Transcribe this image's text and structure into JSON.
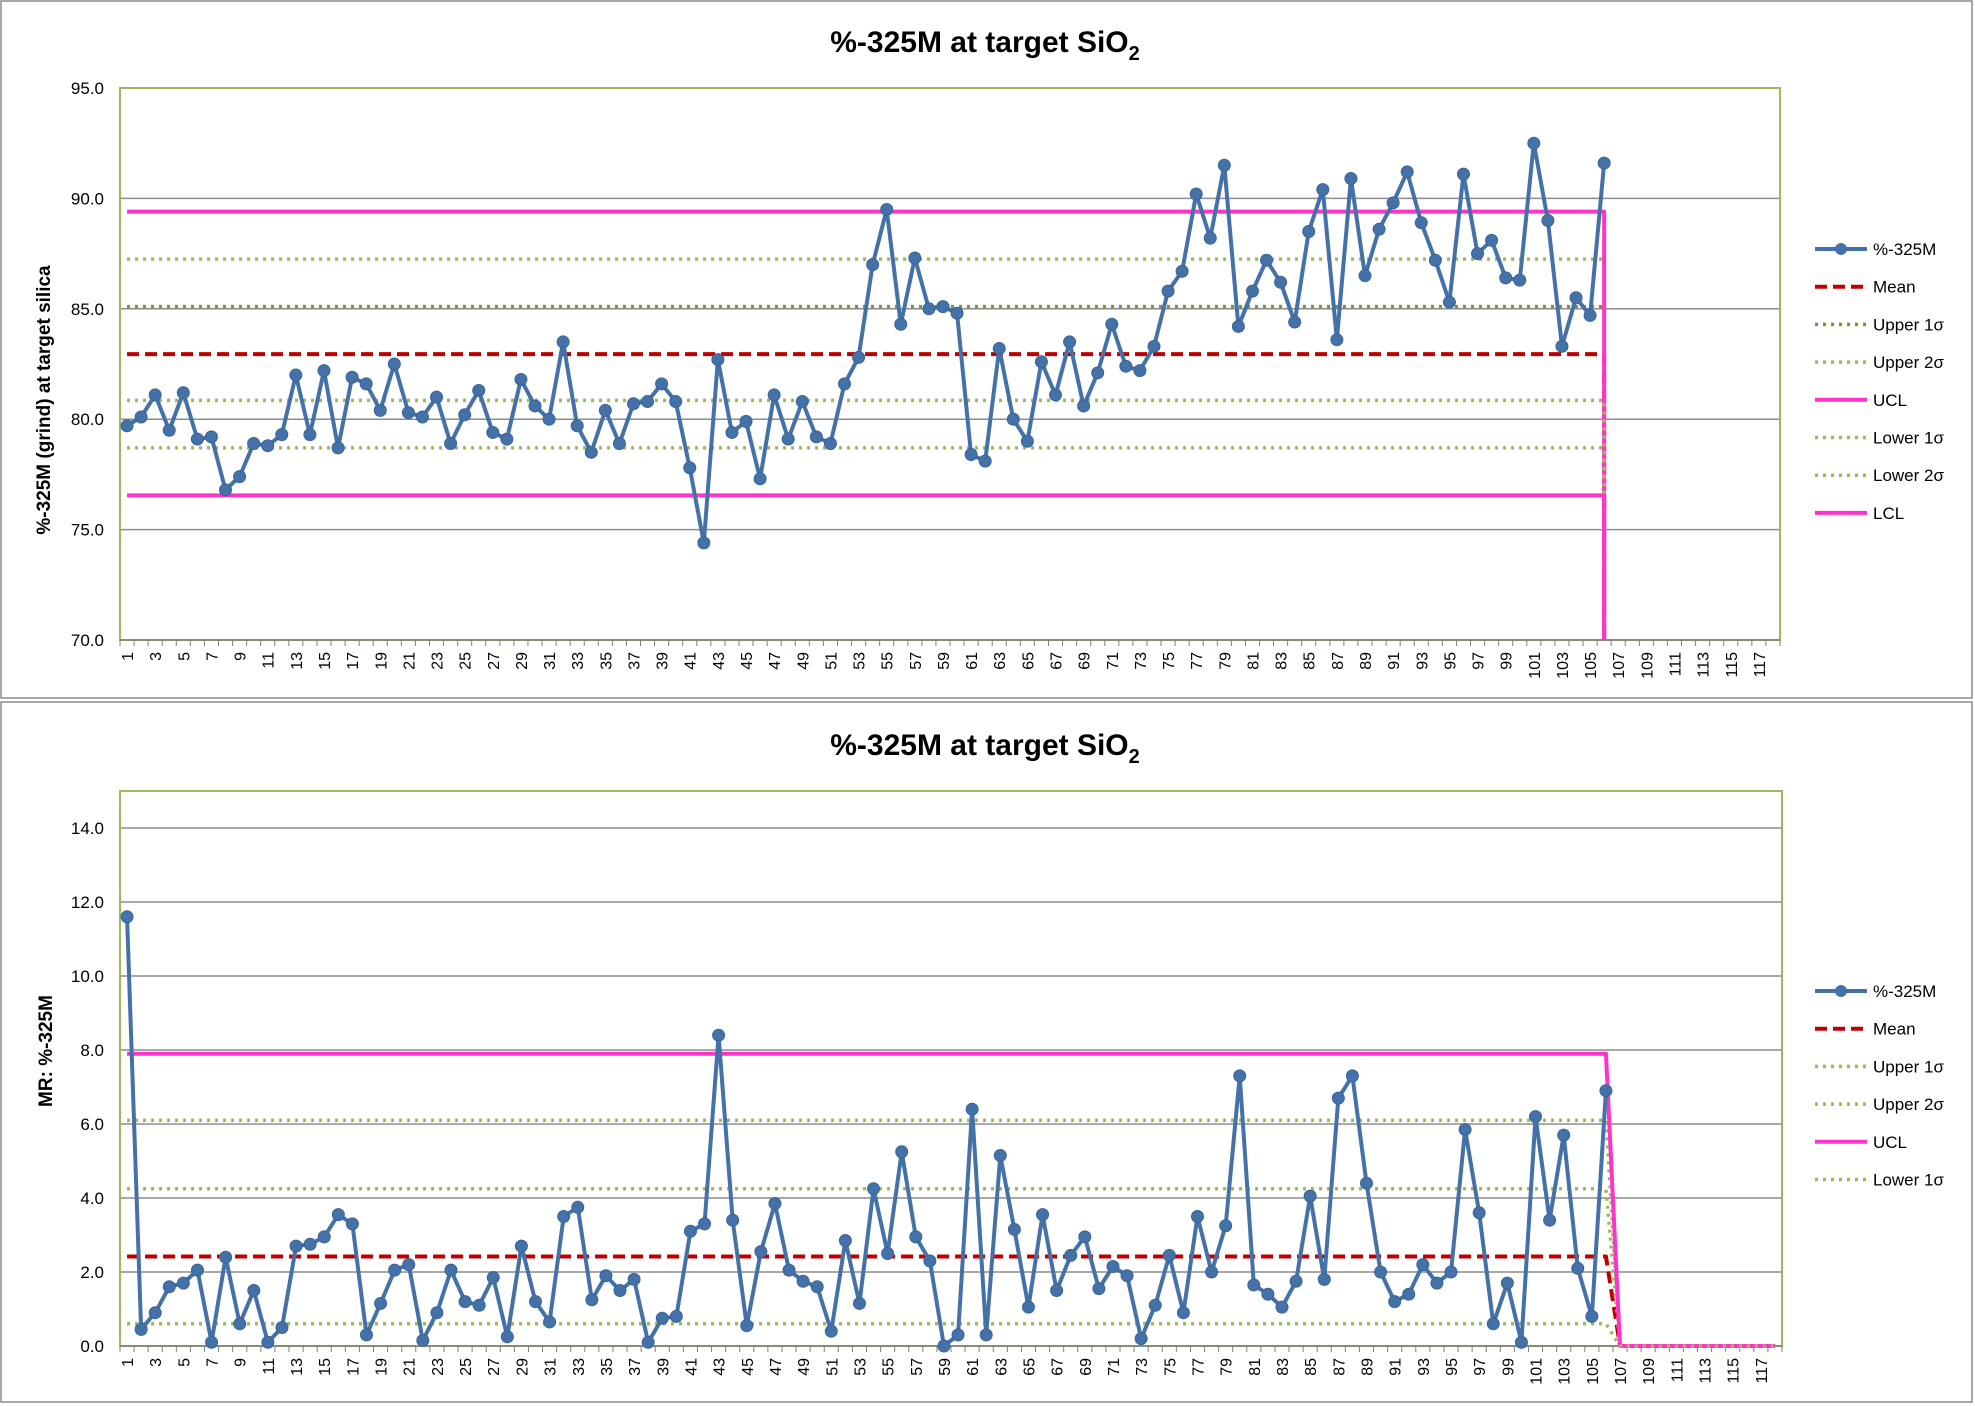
{
  "chart_data": [
    {
      "type": "line",
      "title": "%-325M at target SiO",
      "title_subscript": "2",
      "xlabel": "",
      "ylabel": "%-325M (grind) at target silica",
      "ylim": [
        70,
        95
      ],
      "yticks": [
        "70.0",
        "75.0",
        "80.0",
        "85.0",
        "90.0",
        "95.0"
      ],
      "x_count": 118,
      "x_tick_labels": [
        "1",
        "3",
        "5",
        "7",
        "9",
        "11",
        "13",
        "15",
        "17",
        "19",
        "21",
        "23",
        "25",
        "27",
        "29",
        "31",
        "33",
        "35",
        "37",
        "39",
        "41",
        "43",
        "45",
        "47",
        "49",
        "51",
        "53",
        "55",
        "57",
        "59",
        "61",
        "63",
        "65",
        "67",
        "69",
        "71",
        "73",
        "75",
        "77",
        "79",
        "81",
        "83",
        "85",
        "87",
        "89",
        "91",
        "93",
        "95",
        "97",
        "99",
        "101",
        "103",
        "105",
        "107",
        "109",
        "111",
        "113",
        "115",
        "117"
      ],
      "grid": true,
      "legend_position": "right",
      "series": [
        {
          "name": "%-325M",
          "style": "line-marker",
          "color": "#4472a8",
          "values": [
            79.7,
            80.1,
            81.1,
            79.5,
            81.2,
            79.1,
            79.2,
            76.8,
            77.4,
            78.9,
            78.8,
            79.3,
            82.0,
            79.3,
            82.2,
            78.7,
            81.9,
            81.6,
            80.4,
            82.5,
            80.3,
            80.1,
            81.0,
            78.9,
            80.2,
            81.3,
            79.4,
            79.1,
            81.8,
            80.6,
            80.0,
            83.5,
            79.7,
            78.5,
            80.4,
            78.9,
            80.7,
            80.8,
            81.6,
            80.8,
            77.8,
            74.4,
            82.7,
            79.4,
            79.9,
            77.3,
            81.1,
            79.1,
            80.8,
            79.2,
            78.9,
            81.6,
            82.8,
            87.0,
            89.5,
            84.3,
            87.3,
            85.0,
            85.1,
            84.8,
            78.4,
            78.1,
            83.2,
            80.0,
            79.0,
            82.6,
            81.1,
            83.5,
            80.6,
            82.1,
            84.3,
            82.4,
            82.2,
            83.3,
            85.8,
            86.7,
            90.2,
            88.2,
            91.5,
            84.2,
            85.8,
            87.2,
            86.2,
            84.4,
            88.5,
            90.4,
            83.6,
            90.9,
            86.5,
            88.6,
            89.8,
            91.2,
            88.9,
            87.2,
            85.3,
            91.1,
            87.5,
            88.1,
            86.4,
            86.3,
            92.5,
            89.0,
            83.3,
            85.5,
            84.7,
            91.6
          ]
        },
        {
          "name": "Mean",
          "style": "dashed",
          "color": "#c00000",
          "values": [
            82.95
          ]
        },
        {
          "name": "Upper 1σ",
          "style": "dotted",
          "color": "#77933c",
          "values": [
            85.1
          ]
        },
        {
          "name": "Upper 2σ",
          "style": "dotted",
          "color": "#9bbb59",
          "values": [
            87.25
          ]
        },
        {
          "name": "UCL",
          "style": "solid",
          "color": "#ff33cc",
          "values": [
            89.4
          ]
        },
        {
          "name": "Lower 1σ",
          "style": "dotted",
          "color": "#9bbb59",
          "values": [
            80.85
          ]
        },
        {
          "name": "Lower 2σ",
          "style": "dotted",
          "color": "#9bbb59",
          "values": [
            78.7
          ]
        },
        {
          "name": "LCL",
          "style": "solid",
          "color": "#ff33cc",
          "values": [
            76.55
          ]
        }
      ]
    },
    {
      "type": "line",
      "title": "%-325M at target SiO",
      "title_subscript": "2",
      "xlabel": "",
      "ylabel": "MR: %-325M",
      "ylim": [
        0,
        15
      ],
      "yticks": [
        "0.0",
        "2.0",
        "4.0",
        "6.0",
        "8.0",
        "10.0",
        "12.0",
        "14.0"
      ],
      "x_count": 118,
      "x_tick_labels": [
        "1",
        "3",
        "5",
        "7",
        "9",
        "11",
        "13",
        "15",
        "17",
        "19",
        "21",
        "23",
        "25",
        "27",
        "29",
        "31",
        "33",
        "35",
        "37",
        "39",
        "41",
        "43",
        "45",
        "47",
        "49",
        "51",
        "53",
        "55",
        "57",
        "59",
        "61",
        "63",
        "65",
        "67",
        "69",
        "71",
        "73",
        "75",
        "77",
        "79",
        "81",
        "83",
        "85",
        "87",
        "89",
        "91",
        "93",
        "95",
        "97",
        "99",
        "101",
        "103",
        "105",
        "107",
        "109",
        "111",
        "113",
        "115",
        "117"
      ],
      "grid": true,
      "legend_position": "right",
      "series": [
        {
          "name": "%-325M",
          "style": "line-marker",
          "color": "#4472a8",
          "values": [
            11.6,
            0.45,
            0.9,
            1.6,
            1.7,
            2.05,
            0.1,
            2.4,
            0.6,
            1.5,
            0.1,
            0.5,
            2.7,
            2.75,
            2.95,
            3.55,
            3.3,
            0.3,
            1.15,
            2.05,
            2.2,
            0.15,
            0.9,
            2.05,
            1.2,
            1.1,
            1.85,
            0.25,
            2.7,
            1.2,
            0.65,
            3.5,
            3.75,
            1.25,
            1.9,
            1.5,
            1.8,
            0.1,
            0.75,
            0.8,
            3.1,
            3.3,
            8.4,
            3.4,
            0.55,
            2.55,
            3.85,
            2.05,
            1.75,
            1.6,
            0.4,
            2.85,
            1.15,
            4.25,
            2.5,
            5.25,
            2.95,
            2.3,
            0.0,
            0.3,
            6.4,
            0.3,
            5.15,
            3.15,
            1.05,
            3.55,
            1.5,
            2.45,
            2.95,
            1.55,
            2.15,
            1.9,
            0.2,
            1.1,
            2.45,
            0.9,
            3.5,
            2.0,
            3.25,
            7.3,
            1.65,
            1.4,
            1.05,
            1.75,
            4.05,
            1.8,
            6.7,
            7.3,
            4.4,
            2.0,
            1.2,
            1.4,
            2.2,
            1.7,
            2.0,
            5.85,
            3.6,
            0.6,
            1.7,
            0.1,
            6.2,
            3.4,
            5.7,
            2.1,
            0.8,
            6.9
          ]
        },
        {
          "name": "Mean",
          "style": "dashed",
          "color": "#c00000",
          "values": [
            2.42
          ]
        },
        {
          "name": "Upper 1σ",
          "style": "dotted",
          "color": "#9bbb59",
          "values": [
            4.25
          ]
        },
        {
          "name": "Upper 2σ",
          "style": "dotted",
          "color": "#9bbb59",
          "values": [
            6.1
          ]
        },
        {
          "name": "UCL",
          "style": "solid",
          "color": "#ff33cc",
          "values": [
            7.9
          ]
        },
        {
          "name": "Lower 1σ",
          "style": "dotted",
          "color": "#9bbb59",
          "values": [
            0.6
          ]
        }
      ]
    }
  ]
}
